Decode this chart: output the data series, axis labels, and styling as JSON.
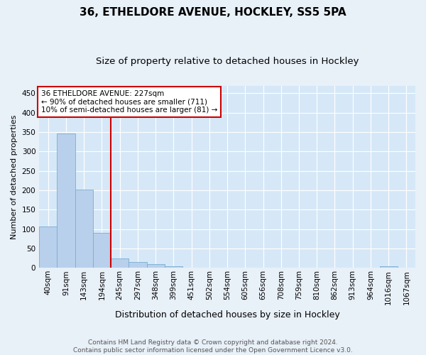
{
  "title": "36, ETHELDORE AVENUE, HOCKLEY, SS5 5PA",
  "subtitle": "Size of property relative to detached houses in Hockley",
  "xlabel": "Distribution of detached houses by size in Hockley",
  "ylabel": "Number of detached properties",
  "categories": [
    "40sqm",
    "91sqm",
    "143sqm",
    "194sqm",
    "245sqm",
    "297sqm",
    "348sqm",
    "399sqm",
    "451sqm",
    "502sqm",
    "554sqm",
    "605sqm",
    "656sqm",
    "708sqm",
    "759sqm",
    "810sqm",
    "862sqm",
    "913sqm",
    "964sqm",
    "1016sqm",
    "1067sqm"
  ],
  "values": [
    107,
    347,
    202,
    90,
    24,
    16,
    9,
    4,
    0,
    0,
    0,
    0,
    0,
    0,
    0,
    0,
    0,
    0,
    0,
    4,
    0
  ],
  "bar_color": "#b8d0eb",
  "bar_edge_color": "#7aadd4",
  "background_color": "#d6e8f7",
  "fig_background_color": "#e8f0f8",
  "grid_color": "#ffffff",
  "vline_x": 3.5,
  "vline_color": "#cc0000",
  "annotation_text": "36 ETHELDORE AVENUE: 227sqm\n← 90% of detached houses are smaller (711)\n10% of semi-detached houses are larger (81) →",
  "annotation_box_color": "#ffffff",
  "annotation_box_edge": "#cc0000",
  "ylim": [
    0,
    470
  ],
  "yticks": [
    0,
    50,
    100,
    150,
    200,
    250,
    300,
    350,
    400,
    450
  ],
  "footer": "Contains HM Land Registry data © Crown copyright and database right 2024.\nContains public sector information licensed under the Open Government Licence v3.0.",
  "title_fontsize": 11,
  "subtitle_fontsize": 9.5,
  "xlabel_fontsize": 9,
  "ylabel_fontsize": 8,
  "tick_fontsize": 7.5,
  "annotation_fontsize": 7.5,
  "footer_fontsize": 6.5
}
